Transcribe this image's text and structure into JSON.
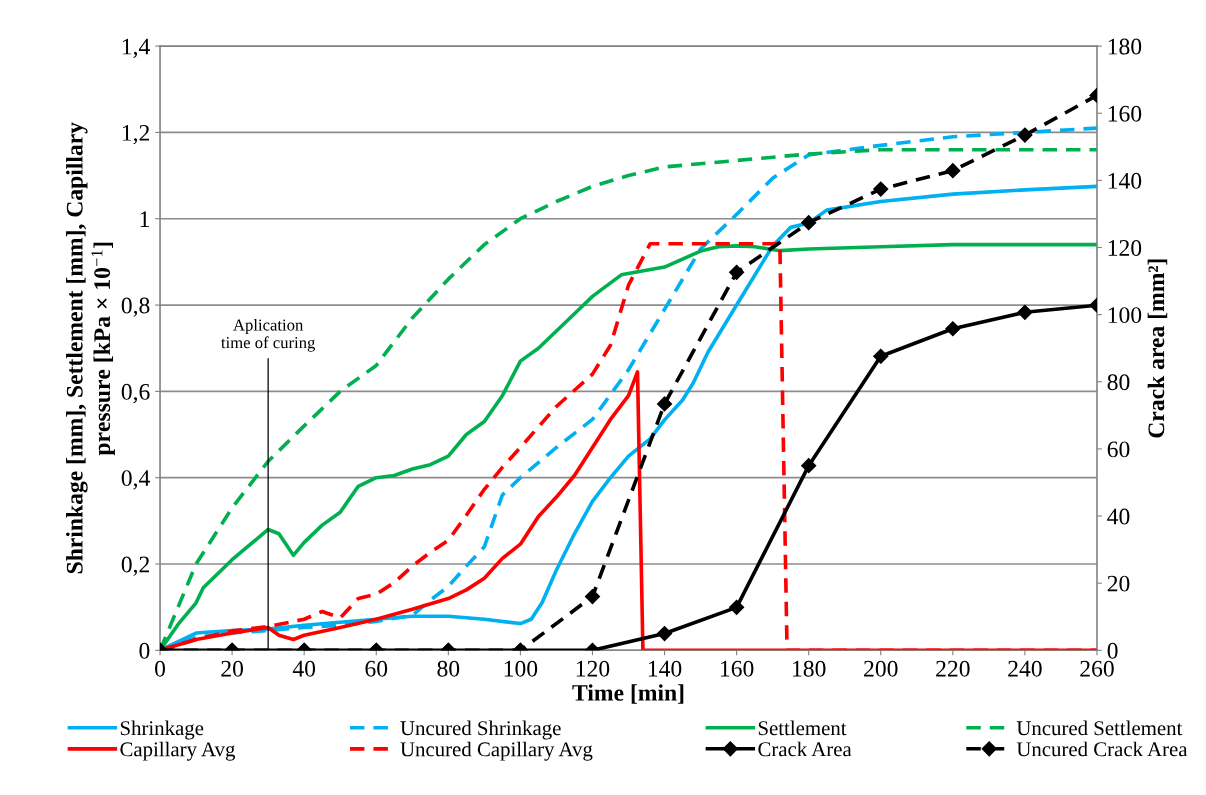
{
  "chart_data": {
    "type": "line",
    "xlabel": "Time [min]",
    "ylabel": "Shrinkage [mm], Settlement [mm], Capillary\npressure [kPa × 10$^{−1}$]",
    "y2label": "Crack area [mm²]",
    "xlim": [
      0,
      260
    ],
    "xticks": [
      0,
      20,
      40,
      60,
      80,
      100,
      120,
      140,
      160,
      180,
      200,
      220,
      240,
      260
    ],
    "ylim": [
      0,
      1.4
    ],
    "yticks": [
      0,
      {
        "value": 0.2,
        "label": "0,2"
      },
      {
        "value": 0.4,
        "label": "0,4"
      },
      {
        "value": 0.6,
        "label": "0,6"
      },
      {
        "value": 0.8,
        "label": "0,8"
      },
      1,
      {
        "value": 1.2,
        "label": "1,2"
      },
      {
        "value": 1.4,
        "label": "1,4"
      }
    ],
    "y2lim": [
      0,
      180
    ],
    "y2ticks": [
      0,
      20,
      40,
      60,
      80,
      100,
      120,
      140,
      160,
      180
    ],
    "grid": "y",
    "legend": "bottom",
    "annotations": [
      {
        "text": "Aplication\ntime of curing",
        "x": 30,
        "y": 0
      }
    ],
    "series": [
      {
        "name": "Shrinkage",
        "color": "#00b0f0",
        "line_style": "solid",
        "marker": "none",
        "x": [
          0,
          10,
          20,
          30,
          40,
          60,
          70,
          80,
          90,
          100,
          103,
          106,
          110,
          115,
          120,
          125,
          130,
          136,
          140,
          145,
          148,
          152,
          160,
          170,
          175,
          180,
          185,
          200,
          220,
          240,
          260
        ],
        "values": [
          0,
          0.04,
          0.046,
          0.049,
          0.058,
          0.072,
          0.079,
          0.079,
          0.072,
          0.062,
          0.072,
          0.11,
          0.186,
          0.27,
          0.345,
          0.4,
          0.45,
          0.49,
          0.534,
          0.58,
          0.62,
          0.69,
          0.8,
          0.937,
          0.98,
          0.99,
          1.02,
          1.04,
          1.057,
          1.067,
          1.075
        ]
      },
      {
        "name": "Uncured Shrinkage",
        "color": "#00b0f0",
        "line_style": "dashed",
        "marker": "none",
        "x": [
          0,
          10,
          20,
          30,
          40,
          50,
          60,
          70,
          75,
          80,
          85,
          90,
          95,
          100,
          110,
          120,
          130,
          140,
          150,
          160,
          170,
          180,
          200,
          220,
          240,
          260
        ],
        "values": [
          0,
          0.03,
          0.04,
          0.046,
          0.053,
          0.058,
          0.067,
          0.081,
          0.116,
          0.148,
          0.195,
          0.24,
          0.36,
          0.4,
          0.47,
          0.535,
          0.65,
          0.79,
          0.93,
          1.01,
          1.094,
          1.148,
          1.17,
          1.19,
          1.2,
          1.21
        ]
      },
      {
        "name": "Settlement",
        "color": "#00b050",
        "line_style": "solid",
        "marker": "none",
        "x": [
          0,
          5,
          10,
          12,
          20,
          30,
          33,
          37,
          40,
          45,
          50,
          55,
          60,
          65,
          70,
          75,
          80,
          85,
          90,
          95,
          100,
          105,
          110,
          115,
          120,
          128,
          140,
          150,
          155,
          160,
          165,
          172,
          180,
          200,
          220,
          260
        ],
        "values": [
          0,
          0.06,
          0.11,
          0.145,
          0.21,
          0.28,
          0.27,
          0.22,
          0.25,
          0.29,
          0.32,
          0.38,
          0.4,
          0.405,
          0.42,
          0.43,
          0.45,
          0.5,
          0.53,
          0.59,
          0.67,
          0.7,
          0.74,
          0.78,
          0.82,
          0.87,
          0.888,
          0.925,
          0.935,
          0.937,
          0.935,
          0.926,
          0.93,
          0.935,
          0.94,
          0.94
        ]
      },
      {
        "name": "Uncured Settlement",
        "color": "#00b050",
        "line_style": "dashed",
        "marker": "none",
        "x": [
          0,
          5,
          10,
          20,
          30,
          40,
          50,
          60,
          70,
          80,
          90,
          100,
          110,
          120,
          130,
          140,
          160,
          180,
          200,
          260
        ],
        "values": [
          0,
          0.1,
          0.2,
          0.33,
          0.438,
          0.52,
          0.6,
          0.66,
          0.77,
          0.86,
          0.94,
          1.0,
          1.04,
          1.075,
          1.1,
          1.12,
          1.135,
          1.15,
          1.16,
          1.16
        ]
      },
      {
        "name": "Capillary Avg",
        "color": "#ff0000",
        "line_style": "solid",
        "marker": "none",
        "x": [
          0,
          10,
          20,
          30,
          33,
          37,
          40,
          50,
          60,
          70,
          80,
          85,
          90,
          95,
          100,
          105,
          110,
          115,
          120,
          125,
          130,
          132.5,
          134,
          260
        ],
        "values": [
          0,
          0.025,
          0.04,
          0.053,
          0.035,
          0.025,
          0.035,
          0.053,
          0.072,
          0.095,
          0.12,
          0.14,
          0.167,
          0.213,
          0.246,
          0.31,
          0.355,
          0.405,
          0.47,
          0.535,
          0.59,
          0.645,
          0,
          0
        ]
      },
      {
        "name": "Uncured Capillary Avg",
        "color": "#ff0000",
        "line_style": "dashed",
        "marker": "none",
        "x": [
          0,
          10,
          20,
          30,
          40,
          45,
          50,
          55,
          60,
          65,
          70,
          75,
          80,
          85,
          90,
          95,
          100,
          110,
          120,
          125,
          130,
          136,
          172,
          174,
          260
        ],
        "values": [
          0,
          0.025,
          0.045,
          0.055,
          0.072,
          0.09,
          0.075,
          0.12,
          0.13,
          0.157,
          0.195,
          0.227,
          0.255,
          0.313,
          0.373,
          0.424,
          0.47,
          0.565,
          0.64,
          0.707,
          0.846,
          0.942,
          0.942,
          0,
          0
        ]
      },
      {
        "name": "Crack Area",
        "color": "#000000",
        "line_style": "solid",
        "marker": "diamond",
        "axis": "y2",
        "x": [
          0,
          20,
          40,
          60,
          80,
          100,
          120,
          140,
          160,
          180,
          200,
          220,
          240,
          260
        ],
        "values": [
          0,
          0,
          0,
          0,
          0,
          0,
          0,
          5,
          12.8,
          55,
          87.6,
          95.8,
          100.7,
          102.8
        ]
      },
      {
        "name": "Uncured Crack Area",
        "color": "#000000",
        "line_style": "dashed",
        "marker": "diamond",
        "axis": "y2",
        "x": [
          0,
          20,
          40,
          60,
          80,
          100,
          120,
          140,
          160,
          180,
          200,
          220,
          240,
          260
        ],
        "values": [
          0,
          0,
          0,
          0,
          0,
          0,
          16,
          73.4,
          112.6,
          127.4,
          137.4,
          142.9,
          153.5,
          165.3
        ]
      }
    ]
  }
}
